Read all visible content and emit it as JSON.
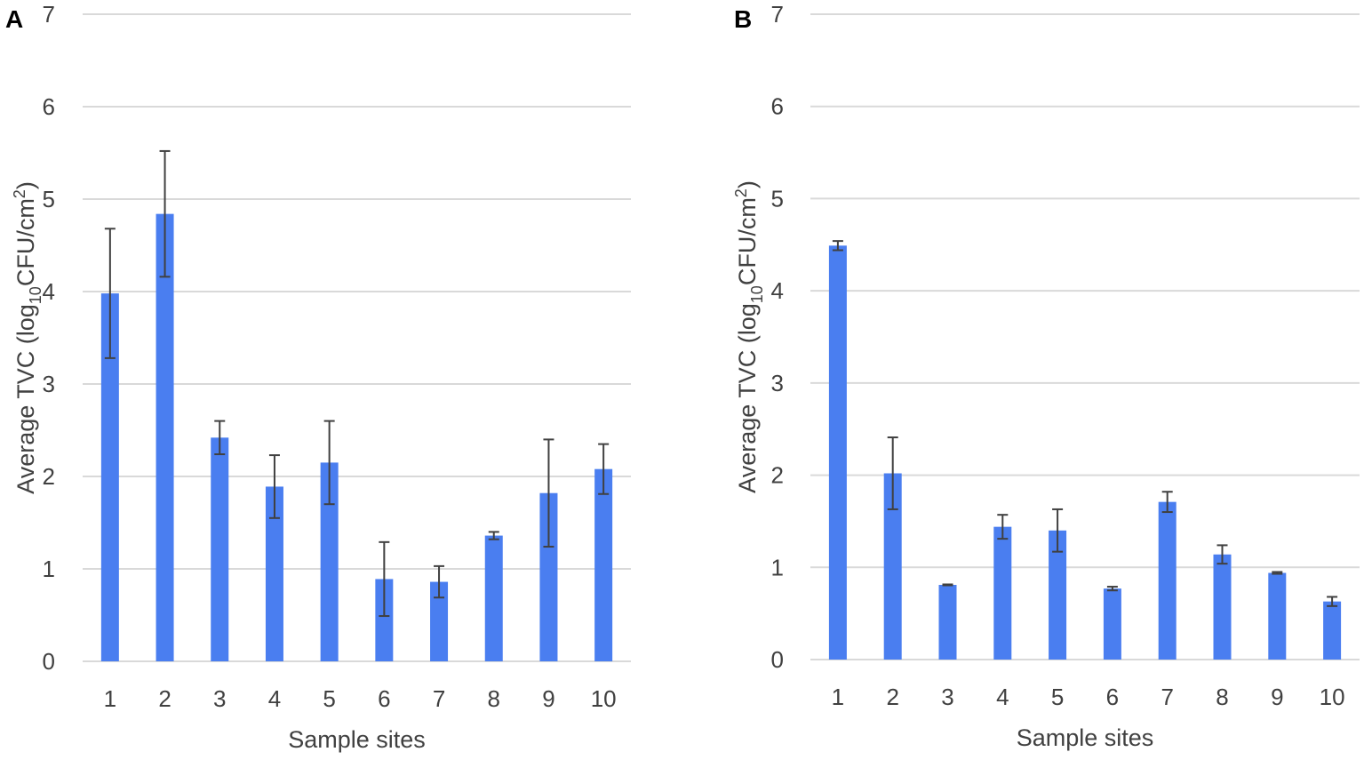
{
  "colors": {
    "bar": "#4a7ef0",
    "grid": "#d9d9d9",
    "error": "#404040",
    "text": "#404040"
  },
  "chart_data": [
    {
      "panel": "A",
      "type": "bar",
      "xlabel": "Sample sites",
      "ylabel_parts": [
        "Average TVC (log",
        "10",
        "CFU/cm",
        "2",
        ")"
      ],
      "ylim": [
        0,
        7
      ],
      "yticks": [
        0,
        1,
        2,
        3,
        4,
        5,
        6,
        7
      ],
      "categories": [
        "1",
        "2",
        "3",
        "4",
        "5",
        "6",
        "7",
        "8",
        "9",
        "10"
      ],
      "values": [
        3.98,
        4.84,
        2.42,
        1.89,
        2.15,
        0.89,
        0.86,
        1.36,
        1.82,
        2.08
      ],
      "errors": [
        0.7,
        0.68,
        0.18,
        0.34,
        0.45,
        0.4,
        0.17,
        0.04,
        0.58,
        0.27
      ],
      "grid": true
    },
    {
      "panel": "B",
      "type": "bar",
      "xlabel": "Sample sites",
      "ylabel_parts": [
        "Average TVC (log",
        "10",
        "CFU/cm",
        "2",
        ")"
      ],
      "ylim": [
        0,
        7
      ],
      "yticks": [
        0,
        1,
        2,
        3,
        4,
        5,
        6,
        7
      ],
      "categories": [
        "1",
        "2",
        "3",
        "4",
        "5",
        "6",
        "7",
        "8",
        "9",
        "10"
      ],
      "values": [
        4.49,
        2.02,
        0.81,
        1.44,
        1.4,
        0.77,
        1.71,
        1.14,
        0.94,
        0.63
      ],
      "errors": [
        0.05,
        0.39,
        0.005,
        0.13,
        0.23,
        0.02,
        0.11,
        0.1,
        0.01,
        0.05
      ],
      "grid": true
    }
  ]
}
